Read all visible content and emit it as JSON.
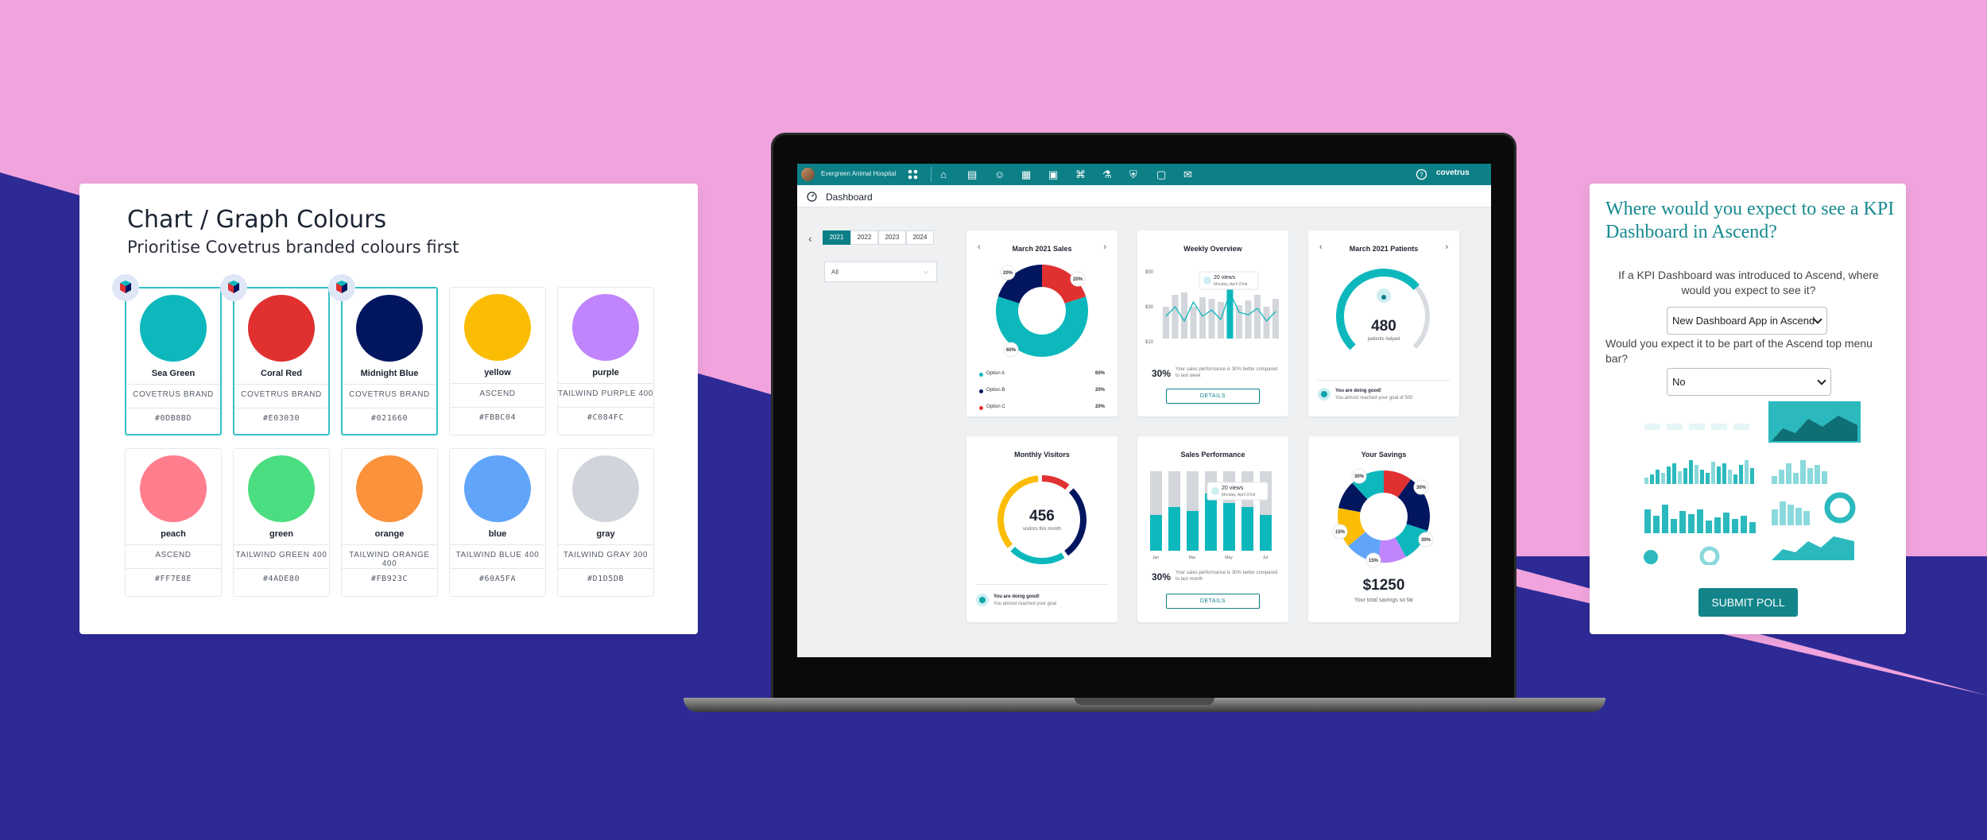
{
  "background": {
    "pink": "#F0A3DC",
    "navy": "#2D2A96"
  },
  "palette": {
    "title": "Chart / Graph Colours",
    "subtitle": "Prioritise Covetrus branded colours first",
    "swatches": [
      {
        "name": "Sea Green",
        "group": "COVETRUS BRAND",
        "hex": "#0DB8BD",
        "brand": true
      },
      {
        "name": "Coral Red",
        "group": "COVETRUS BRAND",
        "hex": "#E03030",
        "brand": true
      },
      {
        "name": "Midnight Blue",
        "group": "COVETRUS BRAND",
        "hex": "#021660",
        "brand": true
      },
      {
        "name": "yellow",
        "group": "ASCEND",
        "hex": "#FBBC04",
        "brand": false
      },
      {
        "name": "purple",
        "group": "TAILWIND PURPLE 400",
        "hex": "#C084FC",
        "brand": false
      },
      {
        "name": "peach",
        "group": "ASCEND",
        "hex": "#FF7E8E",
        "brand": false
      },
      {
        "name": "green",
        "group": "TAILWIND GREEN 400",
        "hex": "#4ADE80",
        "brand": false
      },
      {
        "name": "orange",
        "group": "TAILWIND ORANGE 400",
        "hex": "#FB923C",
        "brand": false
      },
      {
        "name": "blue",
        "group": "TAILWIND BLUE 400",
        "hex": "#60A5FA",
        "brand": false
      },
      {
        "name": "gray",
        "group": "TAILWIND GRAY 300",
        "hex": "#D1D5DB",
        "brand": false
      }
    ]
  },
  "app": {
    "hospital": "Evergreen Animal Hospital",
    "logo": "covetrus",
    "page_title": "Dashboard",
    "nav_icons": [
      "home-icon",
      "records-icon",
      "patient-icon",
      "calendar-icon",
      "clipboard-icon",
      "cart-icon",
      "lab-icon",
      "shield-icon",
      "inbox-icon",
      "chat-icon"
    ],
    "years": [
      "2021",
      "2022",
      "2023",
      "2024"
    ],
    "active_year": "2021",
    "filter_value": "All",
    "sales": {
      "title": "March 2021 Sales",
      "slices": [
        {
          "label": "Option A",
          "value": 60,
          "color": "#0DB8BD"
        },
        {
          "label": "Option B",
          "value": 20,
          "color": "#021660"
        },
        {
          "label": "Option C",
          "value": 20,
          "color": "#E03030"
        }
      ],
      "legend": [
        {
          "label": "Option A",
          "value": "60%"
        },
        {
          "label": "Option B",
          "value": "20%"
        },
        {
          "label": "Option C",
          "value": "20%"
        }
      ],
      "callouts": [
        "20%",
        "20%",
        "60%"
      ]
    },
    "weekly": {
      "title": "Weekly Overview",
      "y_ticks": [
        "$50",
        "$30",
        "$10"
      ],
      "tooltip_title": "20 views",
      "tooltip_sub": "Monday, April 22nd",
      "pct": "30%",
      "desc": "Your sales performance is 30% better compared to last week",
      "button": "DETAILS"
    },
    "patients": {
      "title": "March 2021 Patients",
      "value": "480",
      "caption": "patients helped",
      "fraction": 0.68,
      "good_title": "You are doing good!",
      "good_sub": "You almost reached your goal of 500"
    },
    "visitors": {
      "title": "Monthly Visitors",
      "value": "456",
      "caption": "visitors this month",
      "good_title": "You are doing good!",
      "good_sub": "You almost reached your goal"
    },
    "performance": {
      "title": "Sales Performance",
      "months": [
        "Jan",
        "Mar",
        "May",
        "Jul"
      ],
      "tooltip_title": "20 views",
      "tooltip_sub": "Monday, April 22nd",
      "pct": "30%",
      "desc": "Your sales performance is 30% better compared to last month",
      "button": "DETAILS"
    },
    "savings": {
      "title": "Your Savings",
      "value": "$1250",
      "caption": "Your total savings so far",
      "callouts": [
        "30%",
        "30%",
        "15%",
        "15%",
        "30%"
      ]
    }
  },
  "poll": {
    "title": "Where would you expect to see a KPI Dashboard in Ascend?",
    "q1": "If a KPI Dashboard was introduced to Ascend, where would you expect to see it?",
    "a1": "New Dashboard App in Ascend",
    "q2": "Would you expect it to be part of the Ascend top menu bar?",
    "a2": "No",
    "submit": "SUBMIT POLL"
  }
}
